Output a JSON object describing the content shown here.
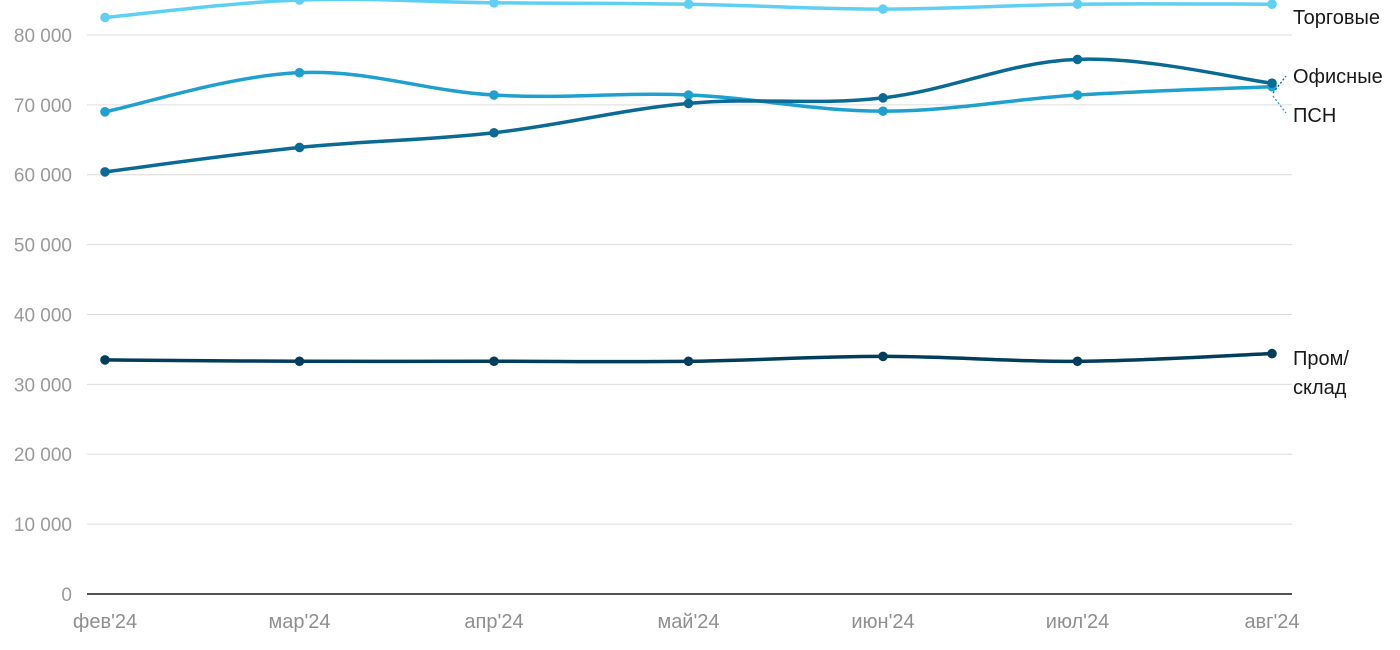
{
  "chart_data": {
    "type": "line",
    "categories": [
      "фев'24",
      "мар'24",
      "апр'24",
      "май'24",
      "июн'24",
      "июл'24",
      "авг'24"
    ],
    "ylim": [
      0,
      85000
    ],
    "yticks": [
      0,
      10000,
      20000,
      30000,
      40000,
      50000,
      60000,
      70000,
      80000
    ],
    "ytick_labels": [
      "0",
      "10 000",
      "20 000",
      "30 000",
      "40 000",
      "50 000",
      "60 000",
      "70 000",
      "80 000"
    ],
    "grid": true,
    "legend": "inline-right",
    "series": [
      {
        "name": "Торговые",
        "label_lines": [
          "Торговые"
        ],
        "color": "#5fd0f3",
        "values": [
          82500,
          85000,
          84600,
          84400,
          83700,
          84400,
          84400
        ]
      },
      {
        "name": "ПСН",
        "label_lines": [
          "ПСН"
        ],
        "color": "#1fa0cf",
        "values": [
          69000,
          74600,
          71400,
          71400,
          69100,
          71400,
          72600
        ]
      },
      {
        "name": "Офисные",
        "label_lines": [
          "Офисные"
        ],
        "color": "#0b6a94",
        "values": [
          60400,
          63900,
          66000,
          70200,
          71000,
          76500,
          73100
        ]
      },
      {
        "name": "Пром/склад",
        "label_lines": [
          "Пром/",
          "склад"
        ],
        "color": "#033d5c",
        "values": [
          33500,
          33300,
          33300,
          33300,
          34000,
          33300,
          34400
        ]
      }
    ]
  }
}
